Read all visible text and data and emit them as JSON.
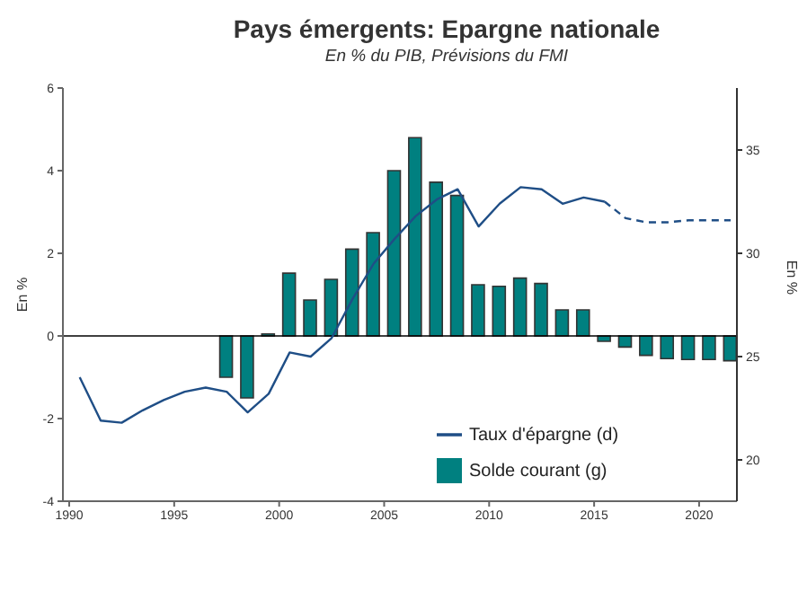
{
  "chart_data": {
    "type": "bar",
    "title": "Pays émergents: Epargne nationale",
    "subtitle": "En % du PIB, Prévisions du FMI",
    "ylabel": "En %",
    "y2label": "En %",
    "series": [
      {
        "name": "Solde courant (g)",
        "color": "#008080",
        "x": [
          1997.5,
          1998.5,
          1999.5,
          2000.5,
          2001.5,
          2002.5,
          2003.5,
          2004.5,
          2005.5,
          2006.5,
          2007.5,
          2008.5,
          2009.5,
          2010.5,
          2011.5,
          2012.5,
          2013.5,
          2014.5,
          2015.5,
          2016.5,
          2017.5,
          2018.5,
          2019.5,
          2020.5,
          2021.5
        ],
        "values": [
          -1.0,
          -1.5,
          0.05,
          1.52,
          0.87,
          1.37,
          2.1,
          2.5,
          4.0,
          4.8,
          3.72,
          3.4,
          1.24,
          1.2,
          1.4,
          1.27,
          0.63,
          0.63,
          -0.13,
          -0.27,
          -0.47,
          -0.55,
          -0.57,
          -0.57,
          -0.6
        ]
      },
      {
        "type": "line",
        "axis": "y2",
        "name": "Taux d'épargne (d)",
        "color": "#1f4e86",
        "x": [
          1990.5,
          1991.5,
          1992.5,
          1993.5,
          1994.5,
          1995.5,
          1996.5,
          1997.5,
          1998.5,
          1999.5,
          2000.5,
          2001.5,
          2002.5,
          2003.5,
          2004.5,
          2005.5,
          2006.5,
          2007.5,
          2008.5,
          2009.5,
          2010.5,
          2011.5,
          2012.5,
          2013.5,
          2014.5,
          2015.5
        ],
        "values": [
          24.0,
          21.9,
          21.8,
          22.4,
          22.9,
          23.3,
          23.5,
          23.3,
          22.3,
          23.2,
          25.2,
          25.0,
          25.9,
          27.8,
          29.5,
          30.7,
          31.8,
          32.6,
          33.1,
          31.3,
          32.4,
          33.2,
          33.1,
          32.4,
          32.7,
          32.5
        ]
      },
      {
        "type": "line",
        "axis": "y2",
        "line_style": "dashed",
        "color": "#1f4e86",
        "x": [
          2015.5,
          2016.5,
          2017.5,
          2018.5,
          2019.5,
          2020.5,
          2021.5
        ],
        "values": [
          32.5,
          31.7,
          31.5,
          31.5,
          31.6,
          31.6,
          31.6
        ]
      }
    ],
    "xlim": [
      1989.7,
      2021.8
    ],
    "xticks": [
      1990,
      1995,
      2000,
      2005,
      2010,
      2015,
      2020
    ],
    "ylim": [
      -4,
      6
    ],
    "yticks": [
      -4,
      -2,
      0,
      2,
      4,
      6
    ],
    "y2lim": [
      18,
      38
    ],
    "y2ticks": [
      20,
      25,
      30,
      35
    ],
    "ref_lines": [
      {
        "axis": "y",
        "value": 0,
        "color": "#000000"
      }
    ],
    "grid": false,
    "legend": "bottom right",
    "marker": "none"
  }
}
